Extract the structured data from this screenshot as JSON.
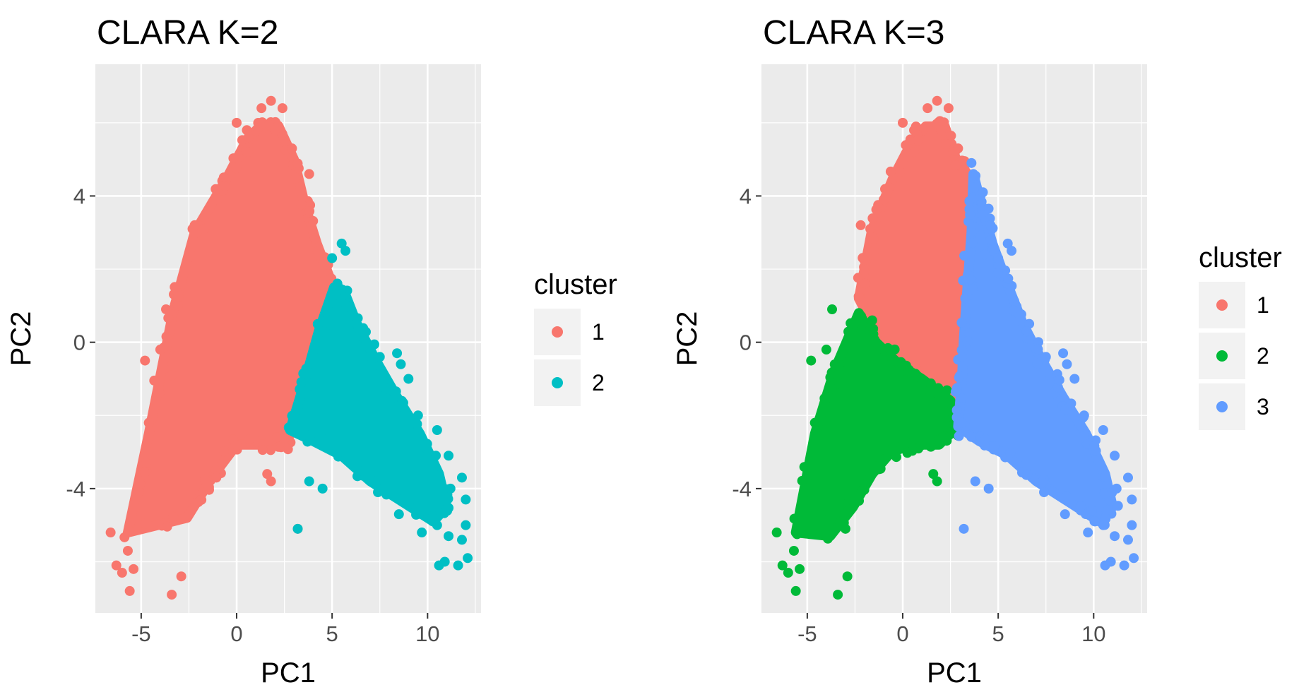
{
  "figure": {
    "background": "#ffffff",
    "panel_background": "#ebebeb",
    "grid_color": "#ffffff"
  },
  "chart_data": [
    {
      "type": "scatter",
      "title": "CLARA K=2",
      "xlabel": "PC1",
      "ylabel": "PC2",
      "xlim": [
        -7.4,
        12.8
      ],
      "ylim": [
        -7.4,
        7.6
      ],
      "xticks": [
        -5,
        0,
        5,
        10
      ],
      "yticks": [
        -4,
        0,
        4
      ],
      "grid": true,
      "legend_title": "cluster",
      "legend_position": "right",
      "series": [
        {
          "name": "1",
          "color": "#F8766D",
          "core_polygon": [
            [
              -5.7,
              -5.2
            ],
            [
              -4.6,
              -2.5
            ],
            [
              -3.3,
              0.9
            ],
            [
              -2.2,
              3.0
            ],
            [
              -0.5,
              4.5
            ],
            [
              0.5,
              5.5
            ],
            [
              1.2,
              5.9
            ],
            [
              2.2,
              5.9
            ],
            [
              3.0,
              5.0
            ],
            [
              3.6,
              3.7
            ],
            [
              4.2,
              2.7
            ],
            [
              5.0,
              1.6
            ],
            [
              4.5,
              0.8
            ],
            [
              3.7,
              -0.6
            ],
            [
              3.2,
              -1.5
            ],
            [
              2.8,
              -2.2
            ],
            [
              2.7,
              -2.8
            ],
            [
              1.5,
              -2.8
            ],
            [
              0.0,
              -2.8
            ],
            [
              -1.3,
              -3.7
            ],
            [
              -2.6,
              -4.8
            ]
          ],
          "points": [
            [
              -6.6,
              -5.2
            ],
            [
              -6.3,
              -6.1
            ],
            [
              -6.0,
              -6.3
            ],
            [
              -5.7,
              -5.7
            ],
            [
              -5.4,
              -6.2
            ],
            [
              -5.6,
              -6.8
            ],
            [
              -3.4,
              -6.9
            ],
            [
              -2.9,
              -6.4
            ],
            [
              -4.6,
              -2.2
            ],
            [
              -4.8,
              -0.5
            ],
            [
              -4.0,
              -0.2
            ],
            [
              -3.7,
              0.9
            ],
            [
              -3.4,
              -0.9
            ],
            [
              -2.2,
              3.2
            ],
            [
              -1.7,
              3.1
            ],
            [
              -1.0,
              3.9
            ],
            [
              0.0,
              6.0
            ],
            [
              0.6,
              5.2
            ],
            [
              1.3,
              6.4
            ],
            [
              1.8,
              6.6
            ],
            [
              2.0,
              5.8
            ],
            [
              2.4,
              6.4
            ],
            [
              2.9,
              5.3
            ],
            [
              3.8,
              4.6
            ],
            [
              4.3,
              2.4
            ],
            [
              4.6,
              1.7
            ],
            [
              4.0,
              1.5
            ],
            [
              3.2,
              -5.1
            ],
            [
              1.6,
              -3.6
            ],
            [
              1.8,
              -3.8
            ],
            [
              2.1,
              -2.6
            ]
          ]
        },
        {
          "name": "2",
          "color": "#00BFC4",
          "core_polygon": [
            [
              2.8,
              -2.4
            ],
            [
              3.5,
              -1.2
            ],
            [
              4.3,
              0.3
            ],
            [
              5.1,
              1.5
            ],
            [
              5.7,
              1.3
            ],
            [
              6.3,
              0.5
            ],
            [
              7.3,
              -0.5
            ],
            [
              8.4,
              -1.5
            ],
            [
              9.6,
              -2.5
            ],
            [
              10.6,
              -3.6
            ],
            [
              11.0,
              -4.5
            ],
            [
              10.3,
              -4.9
            ],
            [
              8.8,
              -4.4
            ],
            [
              7.0,
              -3.8
            ],
            [
              5.5,
              -3.1
            ],
            [
              4.0,
              -2.7
            ]
          ],
          "points": [
            [
              5.5,
              2.7
            ],
            [
              5.7,
              2.5
            ],
            [
              5.0,
              2.3
            ],
            [
              5.2,
              1.5
            ],
            [
              6.5,
              0.3
            ],
            [
              7.5,
              -0.4
            ],
            [
              8.4,
              -0.3
            ],
            [
              8.6,
              -0.6
            ],
            [
              9.0,
              -1.0
            ],
            [
              9.5,
              -2.0
            ],
            [
              10.5,
              -2.4
            ],
            [
              11.1,
              -3.1
            ],
            [
              11.8,
              -3.7
            ],
            [
              11.2,
              -4.0
            ],
            [
              12.0,
              -4.3
            ],
            [
              12.0,
              -5.0
            ],
            [
              11.1,
              -5.3
            ],
            [
              10.5,
              -5.0
            ],
            [
              9.9,
              -4.6
            ],
            [
              10.9,
              -6.0
            ],
            [
              10.6,
              -6.1
            ],
            [
              11.6,
              -6.1
            ],
            [
              12.1,
              -5.9
            ],
            [
              11.8,
              -5.4
            ],
            [
              9.7,
              -5.2
            ],
            [
              8.5,
              -4.7
            ],
            [
              3.2,
              -5.1
            ],
            [
              3.8,
              -3.8
            ],
            [
              4.5,
              -4.0
            ],
            [
              7.4,
              -4.1
            ]
          ]
        }
      ]
    },
    {
      "type": "scatter",
      "title": "CLARA K=3",
      "xlabel": "PC1",
      "ylabel": "PC2",
      "xlim": [
        -7.4,
        12.8
      ],
      "ylim": [
        -7.4,
        7.6
      ],
      "xticks": [
        -5,
        0,
        5,
        10
      ],
      "yticks": [
        -4,
        0,
        4
      ],
      "grid": true,
      "legend_title": "cluster",
      "legend_position": "right",
      "series": [
        {
          "name": "1",
          "color": "#F8766D",
          "core_polygon": [
            [
              -2.3,
              1.2
            ],
            [
              -1.6,
              3.1
            ],
            [
              -0.5,
              4.5
            ],
            [
              0.5,
              5.5
            ],
            [
              1.2,
              5.9
            ],
            [
              2.2,
              5.9
            ],
            [
              2.8,
              5.0
            ],
            [
              3.7,
              4.4
            ],
            [
              3.6,
              3.0
            ],
            [
              3.4,
              1.6
            ],
            [
              3.2,
              0.1
            ],
            [
              3.1,
              -1.0
            ],
            [
              3.0,
              -1.9
            ],
            [
              2.5,
              -1.6
            ],
            [
              1.8,
              -1.2
            ],
            [
              0.8,
              -0.9
            ],
            [
              0.0,
              -0.6
            ],
            [
              -1.0,
              -0.1
            ]
          ],
          "points": [
            [
              0.0,
              6.0
            ],
            [
              0.6,
              5.2
            ],
            [
              1.3,
              6.4
            ],
            [
              1.8,
              6.6
            ],
            [
              2.0,
              5.8
            ],
            [
              2.4,
              6.4
            ],
            [
              2.9,
              5.3
            ],
            [
              -2.2,
              3.2
            ],
            [
              -1.7,
              3.1
            ],
            [
              -1.0,
              3.9
            ],
            [
              -1.5,
              2.5
            ],
            [
              1.5,
              -1.6
            ],
            [
              2.4,
              -1.9
            ]
          ]
        },
        {
          "name": "2",
          "color": "#00BA38",
          "core_polygon": [
            [
              -5.6,
              -5.2
            ],
            [
              -4.6,
              -2.5
            ],
            [
              -3.6,
              -0.8
            ],
            [
              -2.3,
              0.8
            ],
            [
              -1.4,
              0.0
            ],
            [
              -0.2,
              -0.6
            ],
            [
              1.0,
              -1.0
            ],
            [
              2.5,
              -1.6
            ],
            [
              2.9,
              -2.3
            ],
            [
              1.9,
              -2.8
            ],
            [
              0.5,
              -2.8
            ],
            [
              -0.6,
              -3.0
            ],
            [
              -1.6,
              -3.6
            ],
            [
              -2.6,
              -4.5
            ],
            [
              -3.8,
              -5.3
            ]
          ],
          "points": [
            [
              -6.6,
              -5.2
            ],
            [
              -6.3,
              -6.1
            ],
            [
              -6.0,
              -6.3
            ],
            [
              -5.7,
              -5.7
            ],
            [
              -5.4,
              -6.2
            ],
            [
              -5.6,
              -6.8
            ],
            [
              -3.4,
              -6.9
            ],
            [
              -2.9,
              -6.4
            ],
            [
              -4.6,
              -2.2
            ],
            [
              -4.8,
              -0.5
            ],
            [
              -4.0,
              -0.2
            ],
            [
              -3.7,
              0.9
            ],
            [
              -3.4,
              -0.9
            ],
            [
              -1.6,
              0.6
            ],
            [
              1.6,
              -3.6
            ],
            [
              1.8,
              -3.8
            ],
            [
              2.1,
              -2.6
            ],
            [
              -3.0,
              -5.1
            ],
            [
              -4.3,
              -4.7
            ]
          ]
        },
        {
          "name": "3",
          "color": "#619CFF",
          "core_polygon": [
            [
              3.7,
              4.6
            ],
            [
              3.6,
              3.0
            ],
            [
              3.4,
              1.6
            ],
            [
              3.2,
              0.1
            ],
            [
              3.1,
              -1.0
            ],
            [
              2.9,
              -2.3
            ],
            [
              4.0,
              -2.7
            ],
            [
              5.5,
              -3.1
            ],
            [
              7.0,
              -3.8
            ],
            [
              8.8,
              -4.4
            ],
            [
              10.3,
              -4.9
            ],
            [
              11.0,
              -4.5
            ],
            [
              10.6,
              -3.6
            ],
            [
              9.6,
              -2.5
            ],
            [
              8.4,
              -1.5
            ],
            [
              7.3,
              -0.5
            ],
            [
              6.3,
              0.5
            ],
            [
              5.4,
              1.7
            ],
            [
              4.7,
              2.7
            ],
            [
              4.1,
              3.8
            ]
          ],
          "points": [
            [
              3.6,
              4.9
            ],
            [
              4.2,
              4.1
            ],
            [
              4.6,
              3.2
            ],
            [
              4.3,
              2.4
            ],
            [
              5.5,
              2.7
            ],
            [
              5.7,
              2.5
            ],
            [
              5.0,
              2.3
            ],
            [
              6.5,
              0.3
            ],
            [
              7.5,
              -0.4
            ],
            [
              8.4,
              -0.3
            ],
            [
              8.6,
              -0.6
            ],
            [
              9.0,
              -1.0
            ],
            [
              9.5,
              -2.0
            ],
            [
              10.5,
              -2.4
            ],
            [
              11.1,
              -3.1
            ],
            [
              11.8,
              -3.7
            ],
            [
              11.2,
              -4.0
            ],
            [
              12.0,
              -4.3
            ],
            [
              12.0,
              -5.0
            ],
            [
              11.1,
              -5.3
            ],
            [
              10.5,
              -5.0
            ],
            [
              9.9,
              -4.6
            ],
            [
              10.9,
              -6.0
            ],
            [
              10.6,
              -6.1
            ],
            [
              11.6,
              -6.1
            ],
            [
              12.1,
              -5.9
            ],
            [
              11.8,
              -5.4
            ],
            [
              9.7,
              -5.2
            ],
            [
              8.5,
              -4.7
            ],
            [
              3.2,
              -5.1
            ],
            [
              3.8,
              -3.8
            ],
            [
              4.5,
              -4.0
            ],
            [
              7.4,
              -4.1
            ]
          ]
        }
      ]
    }
  ]
}
